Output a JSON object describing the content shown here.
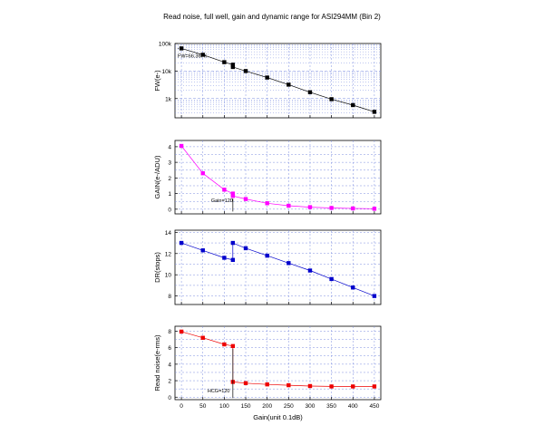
{
  "chart_data": {
    "title": "Read noise, full well, gain and dynamic range for ASI294MM (Bin 2)",
    "xlabel": "Gain(unit 0.1dB)",
    "xlim": [
      -15,
      465
    ],
    "xticks": [
      0,
      50,
      100,
      150,
      200,
      250,
      300,
      350,
      400,
      450
    ],
    "panels": [
      {
        "id": "fw",
        "type": "line",
        "ylabel": "FW(e-)",
        "yscale": "log",
        "ylim": [
          200,
          100000
        ],
        "yticks": [
          1000,
          10000,
          100000
        ],
        "ytick_labels": [
          "1k",
          "10k",
          "100k"
        ],
        "color": "#000000",
        "x": [
          0,
          50,
          100,
          120,
          120,
          150,
          200,
          250,
          300,
          350,
          400,
          450
        ],
        "y": [
          66367,
          39000,
          21000,
          17000,
          14000,
          10000,
          5800,
          3200,
          1700,
          950,
          580,
          330
        ],
        "annotation": "FW=66.367K"
      },
      {
        "id": "gain",
        "type": "line",
        "ylabel": "GAIN(e-/ADU)",
        "yscale": "linear",
        "ylim": [
          -0.3,
          4.4
        ],
        "yticks": [
          0,
          1,
          2,
          3,
          4
        ],
        "ytick_labels": [
          "0",
          "1",
          "2",
          "3",
          "4"
        ],
        "color": "#ff00ff",
        "x": [
          0,
          50,
          100,
          120,
          120,
          150,
          200,
          250,
          300,
          350,
          400,
          450
        ],
        "y": [
          4.05,
          2.3,
          1.25,
          1.0,
          0.85,
          0.65,
          0.38,
          0.22,
          0.13,
          0.08,
          0.05,
          0.03
        ],
        "annotation": "Gain=120"
      },
      {
        "id": "dr",
        "type": "line",
        "ylabel": "DR(stops)",
        "yscale": "linear",
        "ylim": [
          7.2,
          14.2
        ],
        "yticks": [
          8,
          10,
          12,
          14
        ],
        "ytick_labels": [
          "8",
          "10",
          "12",
          "14"
        ],
        "color": "#0000cc",
        "x": [
          0,
          50,
          100,
          120,
          120,
          150,
          200,
          250,
          300,
          350,
          400,
          450
        ],
        "y": [
          13.0,
          12.3,
          11.6,
          11.4,
          13.0,
          12.5,
          11.8,
          11.1,
          10.4,
          9.6,
          8.8,
          8.0
        ],
        "annotation": ""
      },
      {
        "id": "rn",
        "type": "line",
        "ylabel": "Read noise(e-rms)",
        "yscale": "linear",
        "ylim": [
          -0.3,
          8.6
        ],
        "yticks": [
          0,
          2,
          4,
          6,
          8
        ],
        "ytick_labels": [
          "0",
          "2",
          "4",
          "6",
          "8"
        ],
        "color": "#ee0000",
        "x": [
          0,
          50,
          100,
          120,
          120,
          150,
          200,
          250,
          300,
          350,
          400,
          450
        ],
        "y": [
          7.95,
          7.2,
          6.4,
          6.2,
          1.85,
          1.7,
          1.55,
          1.45,
          1.35,
          1.3,
          1.3,
          1.3
        ],
        "annotation": "HCG=120"
      }
    ]
  }
}
